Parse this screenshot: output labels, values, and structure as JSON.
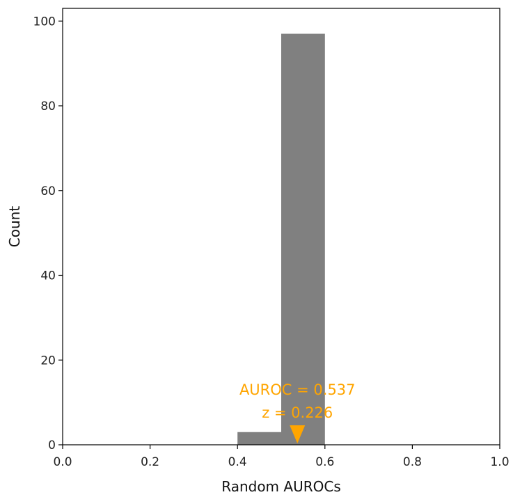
{
  "chart_data": {
    "type": "bar",
    "title": "",
    "xlabel": "Random AUROCs",
    "ylabel": "Count",
    "xlim": [
      0.0,
      1.0
    ],
    "ylim": [
      0,
      103
    ],
    "x_ticks": [
      "0.0",
      "0.2",
      "0.4",
      "0.6",
      "0.8",
      "1.0"
    ],
    "y_ticks": [
      "0",
      "20",
      "40",
      "60",
      "80",
      "100"
    ],
    "bins": [
      {
        "x0": 0.4,
        "x1": 0.5,
        "count": 3
      },
      {
        "x0": 0.5,
        "x1": 0.6,
        "count": 97
      }
    ],
    "bar_color": "#808080",
    "annotation": {
      "line1": "AUROC = 0.537",
      "line2": "z = 0.226",
      "x": 0.537,
      "color": "#FFA500"
    },
    "grid": false,
    "legend": "none"
  }
}
